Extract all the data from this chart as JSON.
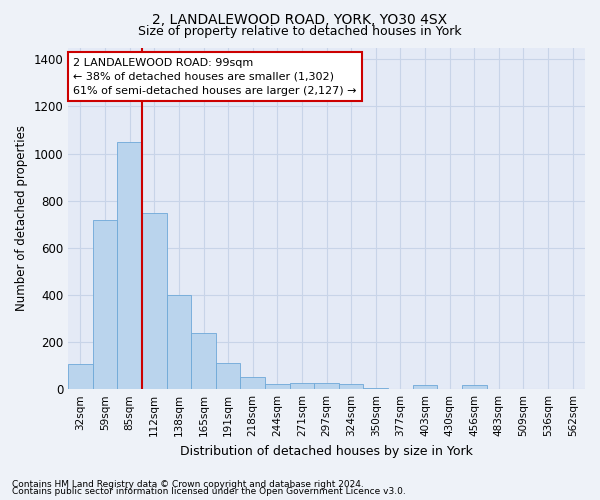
{
  "title_line1": "2, LANDALEWOOD ROAD, YORK, YO30 4SX",
  "title_line2": "Size of property relative to detached houses in York",
  "xlabel": "Distribution of detached houses by size in York",
  "ylabel": "Number of detached properties",
  "categories": [
    "32sqm",
    "59sqm",
    "85sqm",
    "112sqm",
    "138sqm",
    "165sqm",
    "191sqm",
    "218sqm",
    "244sqm",
    "271sqm",
    "297sqm",
    "324sqm",
    "350sqm",
    "377sqm",
    "403sqm",
    "430sqm",
    "456sqm",
    "483sqm",
    "509sqm",
    "536sqm",
    "562sqm"
  ],
  "values": [
    105,
    720,
    1050,
    748,
    400,
    238,
    113,
    50,
    20,
    28,
    28,
    20,
    5,
    0,
    18,
    0,
    18,
    0,
    0,
    0,
    0
  ],
  "bar_color": "#bad4ed",
  "bar_edge_color": "#6ea8d8",
  "vline_color": "#cc0000",
  "vline_pos": 2.5,
  "annotation_text": "2 LANDALEWOOD ROAD: 99sqm\n← 38% of detached houses are smaller (1,302)\n61% of semi-detached houses are larger (2,127) →",
  "annotation_box_color": "#ffffff",
  "annotation_box_edge": "#cc0000",
  "ylim": [
    0,
    1450
  ],
  "yticks": [
    0,
    200,
    400,
    600,
    800,
    1000,
    1200,
    1400
  ],
  "footnote1": "Contains HM Land Registry data © Crown copyright and database right 2024.",
  "footnote2": "Contains public sector information licensed under the Open Government Licence v3.0.",
  "bg_color": "#eef2f8",
  "plot_bg_color": "#e4eaf6",
  "grid_color": "#c8d4e8",
  "title1_fontsize": 10,
  "title2_fontsize": 9
}
